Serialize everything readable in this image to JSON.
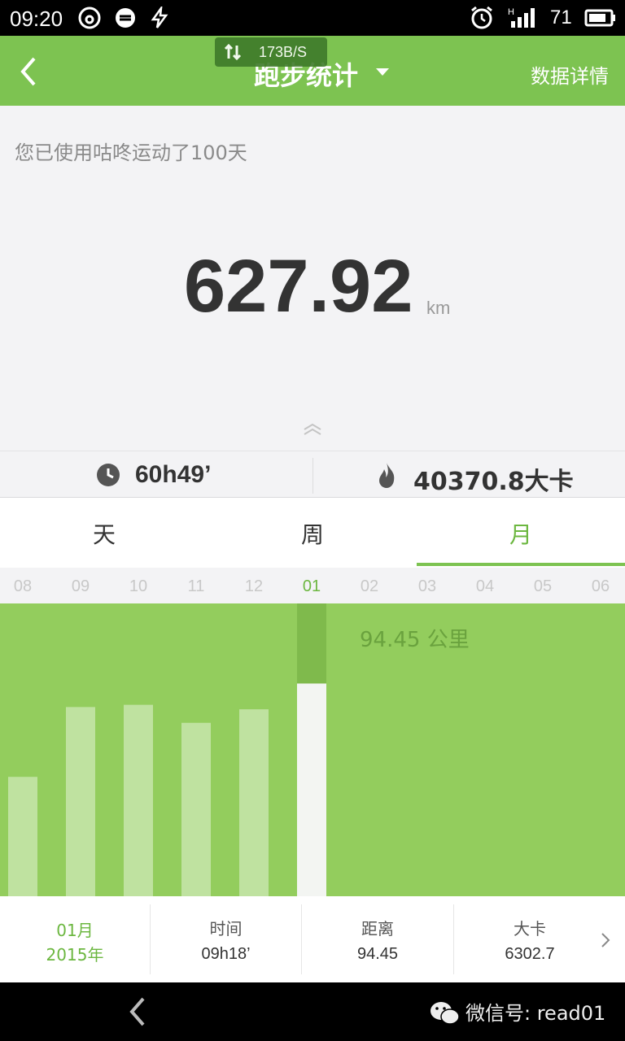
{
  "statusbar": {
    "time": "09:20",
    "battery_level": "71",
    "icons": [
      "netease-music-icon",
      "sync-icon",
      "flash-icon",
      "alarm-icon",
      "signal-icon",
      "battery-icon"
    ]
  },
  "network_speed": "173B/S",
  "header": {
    "title": "跑步统计",
    "detail_link": "数据详情"
  },
  "summary": {
    "usage_text": "您已使用咕咚运动了100天",
    "total_distance": "627.92",
    "unit": "km"
  },
  "stats": {
    "duration": "60h49’",
    "calories": "40370.8大卡"
  },
  "tabs": [
    {
      "label": "天",
      "active": false
    },
    {
      "label": "周",
      "active": false
    },
    {
      "label": "月",
      "active": true
    }
  ],
  "months": [
    "08",
    "09",
    "10",
    "11",
    "12",
    "01",
    "02",
    "03",
    "04",
    "05",
    "06"
  ],
  "selected_month": "01",
  "chart_data": {
    "type": "bar",
    "categories": [
      "08",
      "09",
      "10",
      "11",
      "12",
      "01"
    ],
    "values": [
      53,
      84,
      85,
      77,
      83,
      94.45
    ],
    "ylim": [
      0,
      130
    ],
    "selected_index": 5,
    "selected_label": "94.45 公里",
    "colors": {
      "background": "#93cd5d",
      "bar": "#bfe2a0",
      "selected_bar": "#f3f5f2",
      "selected_column": "#7fba4c"
    }
  },
  "info": {
    "month": "01月",
    "year": "2015年",
    "time_label": "时间",
    "time_value": "09h18’",
    "distance_label": "距离",
    "distance_value": "94.45",
    "calories_label": "大卡",
    "calories_value": "6302.7"
  },
  "watermark": "微信号: read01",
  "colors": {
    "accent": "#7dc351",
    "accent_text": "#6cb740"
  }
}
